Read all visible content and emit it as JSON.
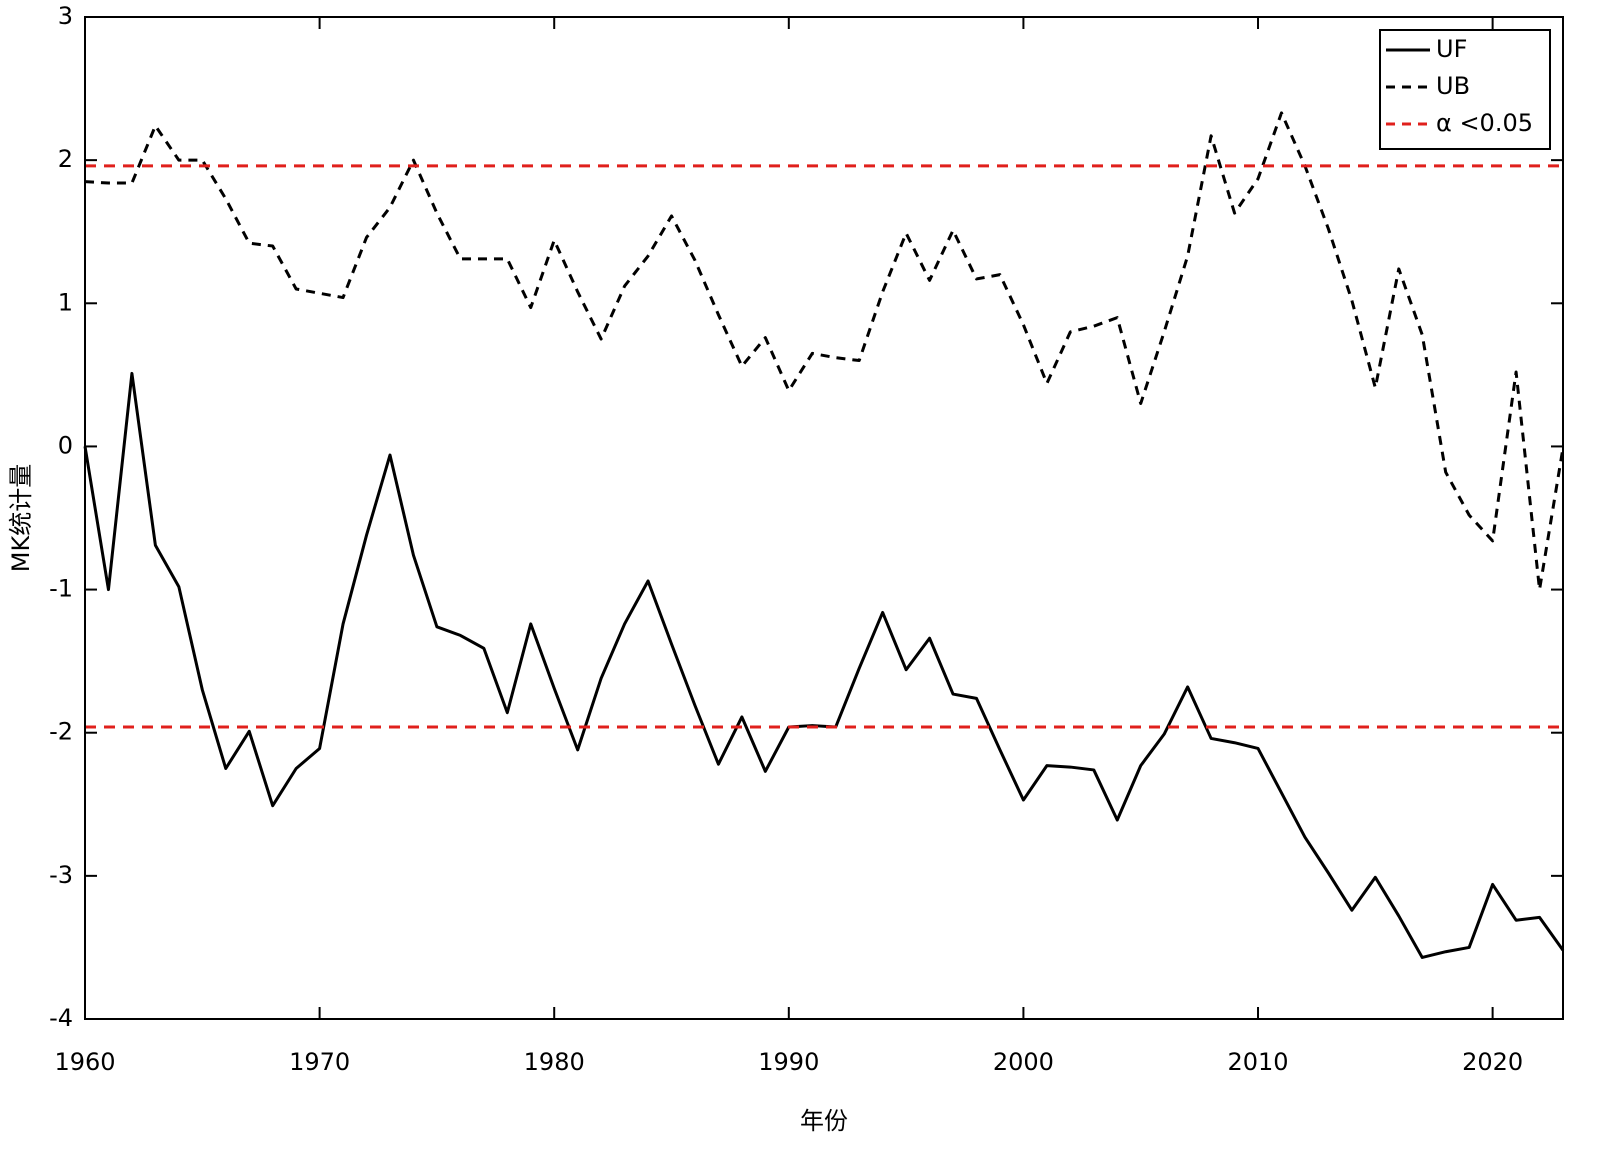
{
  "chart_data": {
    "type": "line",
    "xlabel": "年份",
    "ylabel": "MK统计量",
    "x": [
      1960,
      1961,
      1962,
      1963,
      1964,
      1965,
      1966,
      1967,
      1968,
      1969,
      1970,
      1971,
      1972,
      1973,
      1974,
      1975,
      1976,
      1977,
      1978,
      1979,
      1980,
      1981,
      1982,
      1983,
      1984,
      1985,
      1986,
      1987,
      1988,
      1989,
      1990,
      1991,
      1992,
      1993,
      1994,
      1995,
      1996,
      1997,
      1998,
      1999,
      2000,
      2001,
      2002,
      2003,
      2004,
      2005,
      2006,
      2007,
      2008,
      2009,
      2010,
      2011,
      2012,
      2013,
      2014,
      2015,
      2016,
      2017,
      2018,
      2019,
      2020,
      2021,
      2022,
      2023
    ],
    "series": [
      {
        "name": "UF",
        "color": "#000000",
        "dash": "solid",
        "values": [
          0,
          -1.0,
          0.51,
          -0.69,
          -0.98,
          -1.7,
          -2.25,
          -1.99,
          -2.51,
          -2.25,
          -2.11,
          -1.24,
          -0.62,
          -0.06,
          -0.76,
          -1.26,
          -1.32,
          -1.41,
          -1.86,
          -1.24,
          -1.69,
          -2.12,
          -1.62,
          -1.24,
          -0.94,
          -1.38,
          -1.81,
          -2.22,
          -1.89,
          -2.27,
          -1.96,
          -1.95,
          -1.96,
          -1.55,
          -1.16,
          -1.56,
          -1.34,
          -1.73,
          -1.76,
          -2.12,
          -2.47,
          -2.23,
          -2.24,
          -2.26,
          -2.61,
          -2.23,
          -2.01,
          -1.68,
          -2.04,
          -2.07,
          -2.11,
          -2.42,
          -2.73,
          -2.98,
          -3.24,
          -3.01,
          -3.28,
          -3.57,
          -3.53,
          -3.5,
          -3.06,
          -3.31,
          -3.29,
          -3.52
        ]
      },
      {
        "name": "UB",
        "color": "#000000",
        "dash": "dashed",
        "values": [
          1.85,
          1.84,
          1.84,
          2.24,
          2.0,
          2.0,
          1.73,
          1.42,
          1.4,
          1.1,
          1.07,
          1.04,
          1.46,
          1.67,
          2.0,
          1.63,
          1.31,
          1.31,
          1.31,
          0.97,
          1.44,
          1.08,
          0.75,
          1.12,
          1.33,
          1.61,
          1.3,
          0.92,
          0.56,
          0.76,
          0.39,
          0.65,
          0.62,
          0.6,
          1.08,
          1.49,
          1.16,
          1.51,
          1.17,
          1.2,
          0.85,
          0.44,
          0.8,
          0.84,
          0.9,
          0.3,
          0.8,
          1.33,
          2.17,
          1.63,
          1.87,
          2.33,
          1.96,
          1.52,
          1.02,
          0.41,
          1.24,
          0.78,
          -0.18,
          -0.48,
          -0.66,
          0.52,
          -1.0,
          -0.01
        ]
      }
    ],
    "reference_lines": {
      "name": "α <0.05",
      "color": "#e0201c",
      "values": [
        1.96,
        -1.96
      ]
    },
    "xlim": [
      1960,
      2023
    ],
    "xticks": [
      1960,
      1970,
      1980,
      1990,
      2000,
      2010,
      2020
    ],
    "ylim": [
      -4,
      3
    ],
    "yticks": [
      -4,
      -3,
      -2,
      -1,
      0,
      1,
      2,
      3
    ],
    "legend": "upper right"
  }
}
